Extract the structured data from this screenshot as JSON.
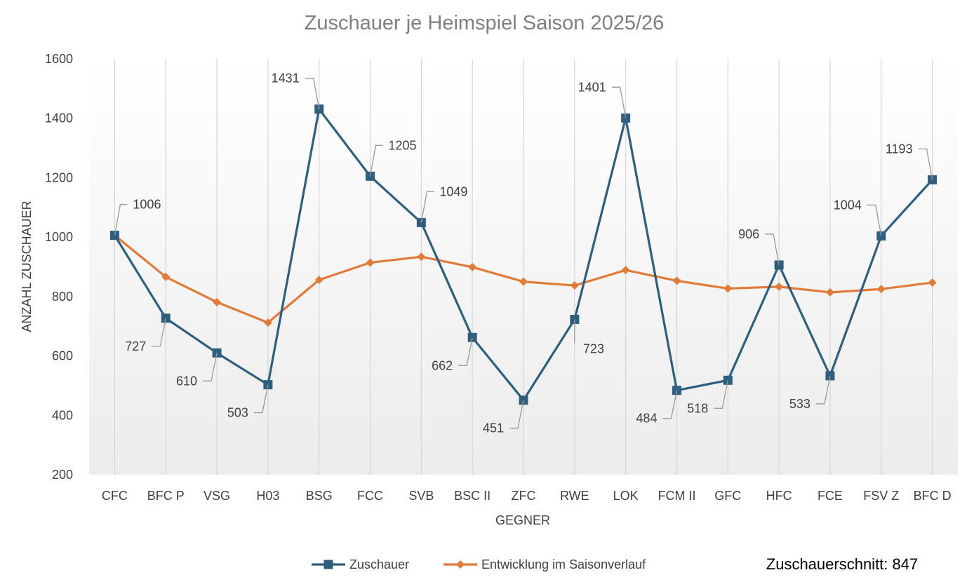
{
  "chart_data": {
    "type": "line",
    "title": "Zuschauer je Heimspiel Saison 2025/26",
    "xlabel": "GEGNER",
    "ylabel": "ANZAHL ZUSCHAUER",
    "ylim": [
      200,
      1600
    ],
    "yticks": [
      200,
      400,
      600,
      800,
      1000,
      1200,
      1400,
      1600
    ],
    "categories": [
      "CFC",
      "BFC P",
      "VSG",
      "H03",
      "BSG",
      "FCC",
      "SVB",
      "BSC II",
      "ZFC",
      "RWE",
      "LOK",
      "FCM II",
      "GFC",
      "HFC",
      "FCE",
      "FSV Z",
      "BFC D"
    ],
    "series": [
      {
        "name": "Zuschauer",
        "color": "#2e5f7f",
        "marker": "square",
        "values": [
          1006,
          727,
          610,
          503,
          1431,
          1205,
          1049,
          662,
          451,
          723,
          1401,
          484,
          518,
          906,
          533,
          1004,
          1193
        ],
        "data_labels": true
      },
      {
        "name": "Entwicklung im Saisonverlauf",
        "color": "#e07b39",
        "marker": "diamond",
        "values": [
          1006,
          866,
          781,
          712,
          856,
          914,
          934,
          899,
          850,
          837,
          889,
          853,
          827,
          833,
          814,
          825,
          847
        ],
        "data_labels": false
      }
    ],
    "legend_position": "bottom",
    "grid": "vertical-lines-per-category",
    "plot_background": "gradient-white-to-light-gray",
    "annotation": "Zuschauerschnitt: 847"
  }
}
